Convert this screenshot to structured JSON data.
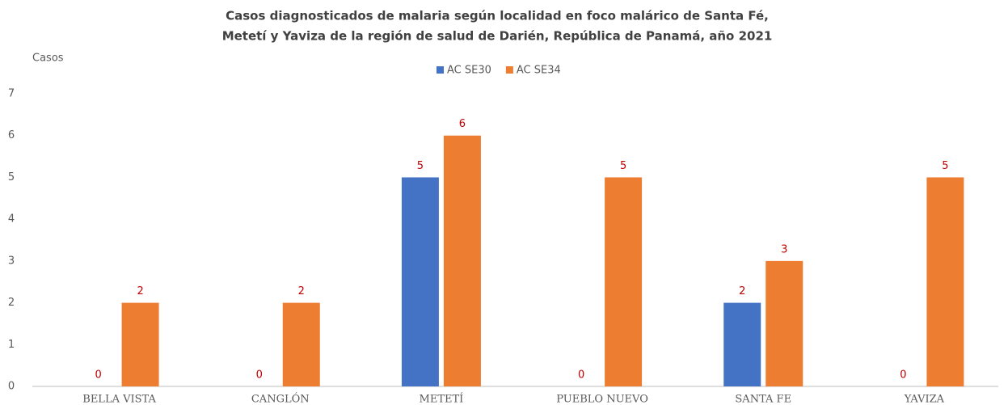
{
  "chart_data": {
    "type": "bar",
    "title": [
      "Casos diagnosticados de malaria según localidad en foco malárico de Santa Fé,",
      "Metetí y Yaviza de la región de salud de Darién, República de Panamá, año 2021"
    ],
    "y_label": "Casos",
    "categories": [
      "BELLA VISTA",
      "CANGLÓN",
      "METETÍ",
      "PUEBLO NUEVO",
      "SANTA FE",
      "YAVIZA"
    ],
    "series": [
      {
        "name": "AC SE30",
        "color": "#4472c4",
        "values": [
          0,
          0,
          5,
          0,
          2,
          0
        ]
      },
      {
        "name": "AC SE34",
        "color": "#ed7d31",
        "values": [
          2,
          2,
          6,
          5,
          3,
          5
        ]
      }
    ],
    "ylim": [
      0,
      7
    ],
    "yticks": [
      0,
      1,
      2,
      3,
      4,
      5,
      6,
      7
    ],
    "grid": false,
    "legend": "top",
    "value_label_color": "#c00000"
  }
}
